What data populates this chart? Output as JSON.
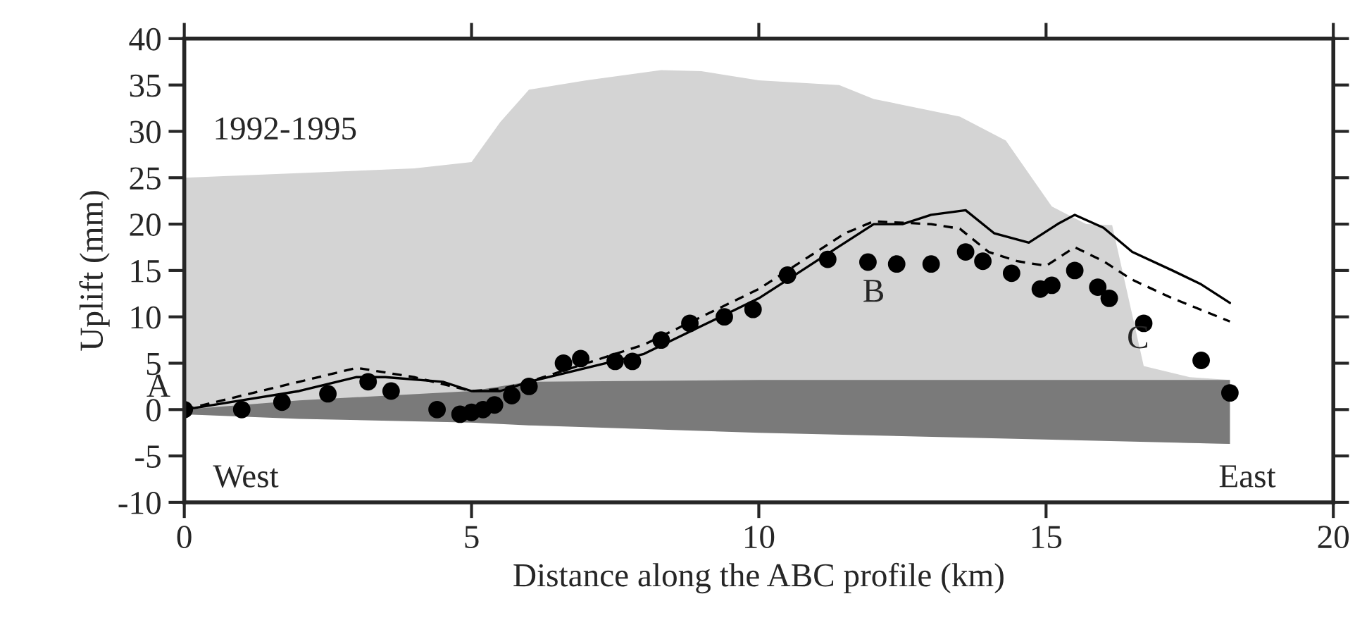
{
  "chart_data": {
    "type": "line",
    "xlabel": "Distance along the ABC profile (km)",
    "ylabel": "Uplift (mm)",
    "xlim": [
      0,
      20
    ],
    "ylim": [
      -10,
      40
    ],
    "xticks": [
      0,
      5,
      10,
      15,
      20
    ],
    "yticks": [
      -10,
      -5,
      0,
      5,
      10,
      15,
      20,
      25,
      30,
      35,
      40
    ],
    "grid": false,
    "legend": false,
    "series": [
      {
        "color": "#d4d4d4",
        "x": [
          0,
          4,
          5,
          5.5,
          6,
          7,
          8.3,
          9,
          10,
          11.4,
          12,
          13.5,
          14.3,
          15.1,
          15.7,
          16.15,
          16.7,
          17.5,
          18.2
        ],
        "values": [
          null,
          null,
          null,
          null,
          null,
          null,
          null,
          null,
          null,
          null,
          null,
          null,
          null,
          null,
          null,
          null,
          null,
          null,
          null
        ],
        "lower": [
          -0.5,
          -1.2,
          -1.4,
          -1.5,
          -1.6,
          -1.8,
          -2,
          -2.1,
          -2.3,
          -2.5,
          -2.6,
          -2.8,
          -3,
          -3.1,
          -3.2,
          -3.3,
          -3.4,
          -3.6,
          -3.7
        ],
        "upper": [
          25,
          26,
          26.7,
          31,
          34.5,
          35.5,
          36.6,
          36.5,
          35.5,
          35,
          33.5,
          31.6,
          29,
          21.9,
          20,
          19.9,
          4.7,
          3.5,
          3.2
        ]
      },
      {
        "color": "#7a7a7a",
        "x": [
          0,
          2,
          5,
          6,
          10,
          18.2
        ],
        "values": [
          null,
          null,
          null,
          null,
          null,
          null
        ],
        "lower": [
          -0.5,
          -1,
          -1.4,
          -1.7,
          -2.5,
          -3.7
        ],
        "upper": [
          0,
          1,
          2,
          3,
          3.2,
          3.2
        ]
      },
      {
        "color": "#000000",
        "line_style": "solid",
        "x": [
          0,
          1,
          2,
          3,
          3.5,
          4.5,
          5,
          5.5,
          6,
          7,
          8,
          9,
          10,
          10.5,
          11,
          11.5,
          12,
          12.5,
          13,
          13.6,
          14.1,
          14.7,
          15.2,
          15.5,
          16,
          16.5,
          17.2,
          17.7,
          18.2
        ],
        "values": [
          0,
          1,
          2,
          3.5,
          3.5,
          3,
          2,
          2,
          3,
          4.5,
          6,
          9,
          12,
          14,
          16,
          18,
          20,
          20,
          21,
          21.5,
          19,
          18,
          20,
          21,
          19.6,
          17,
          15,
          13.5,
          11.5
        ]
      },
      {
        "color": "#000000",
        "line_style": "dashed",
        "x": [
          0,
          1,
          2,
          3,
          4,
          5,
          5.5,
          6,
          7,
          8,
          9,
          10,
          11,
          11.5,
          12,
          13,
          13.5,
          14,
          14.5,
          15,
          15.5,
          16,
          16.5,
          17.2,
          18.2
        ],
        "values": [
          0,
          1.5,
          3,
          4.5,
          3.5,
          2,
          2.2,
          3,
          5,
          7,
          10,
          13,
          17,
          19,
          20.3,
          20,
          19.5,
          17,
          16,
          15.5,
          17.5,
          16,
          14,
          12,
          9.5
        ]
      },
      {
        "type": "scatter",
        "color": "#000000",
        "marker": "circle",
        "x": [
          0,
          1,
          1.7,
          2.5,
          3.2,
          3.6,
          4.4,
          4.8,
          5.0,
          5.2,
          5.4,
          5.7,
          6,
          6.6,
          6.9,
          7.5,
          7.8,
          8.3,
          8.8,
          9.4,
          9.9,
          10.5,
          11.2,
          11.9,
          12.4,
          13,
          13.6,
          13.9,
          14.4,
          14.9,
          15.1,
          15.5,
          15.9,
          16.1,
          16.7,
          17.7,
          18.2
        ],
        "values": [
          0,
          0,
          0.8,
          1.7,
          3,
          2,
          0,
          -0.5,
          -0.3,
          0,
          0.5,
          1.5,
          2.5,
          5,
          5.5,
          5.2,
          5.2,
          7.5,
          9.3,
          10,
          10.8,
          14.5,
          16.2,
          15.9,
          15.7,
          15.7,
          17,
          16,
          14.7,
          13,
          13.4,
          15,
          13.2,
          12,
          9.3,
          5.3,
          1.8
        ]
      }
    ],
    "annotations": [
      "1992-1995",
      "A",
      "B",
      "C",
      "West",
      "East"
    ]
  }
}
